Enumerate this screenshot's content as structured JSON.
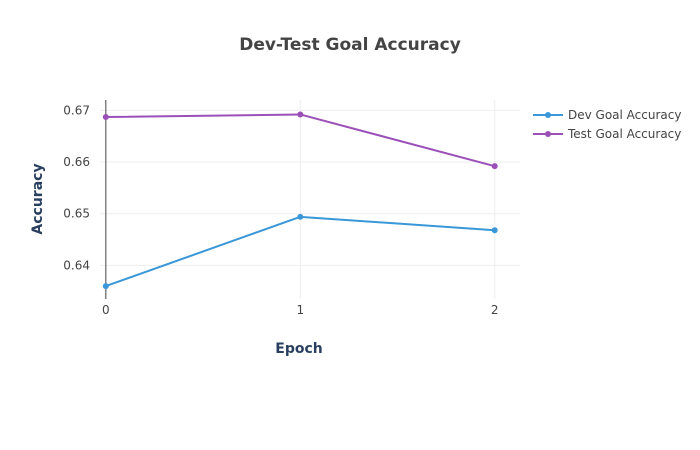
{
  "chart_data": {
    "type": "line",
    "title": "Dev-Test Goal Accuracy",
    "xlabel": "Epoch",
    "ylabel": "Accuracy",
    "x": [
      0,
      1,
      2
    ],
    "x_ticks": [
      "0",
      "1",
      "2"
    ],
    "xlim": [
      -0.03,
      2.13
    ],
    "ylim": [
      0.6335,
      0.672
    ],
    "y_ticks": [
      0.64,
      0.65,
      0.66,
      0.67
    ],
    "y_tick_labels": [
      "0.64",
      "0.65",
      "0.66",
      "0.67"
    ],
    "grid": true,
    "legend_position": "top-right",
    "series": [
      {
        "name": "Dev Goal Accuracy",
        "color": "#3a97d8",
        "values": [
          0.636,
          0.6494,
          0.6468
        ]
      },
      {
        "name": "Test Goal Accuracy",
        "color": "#9a50b8",
        "values": [
          0.6687,
          0.6692,
          0.6592
        ]
      }
    ]
  }
}
